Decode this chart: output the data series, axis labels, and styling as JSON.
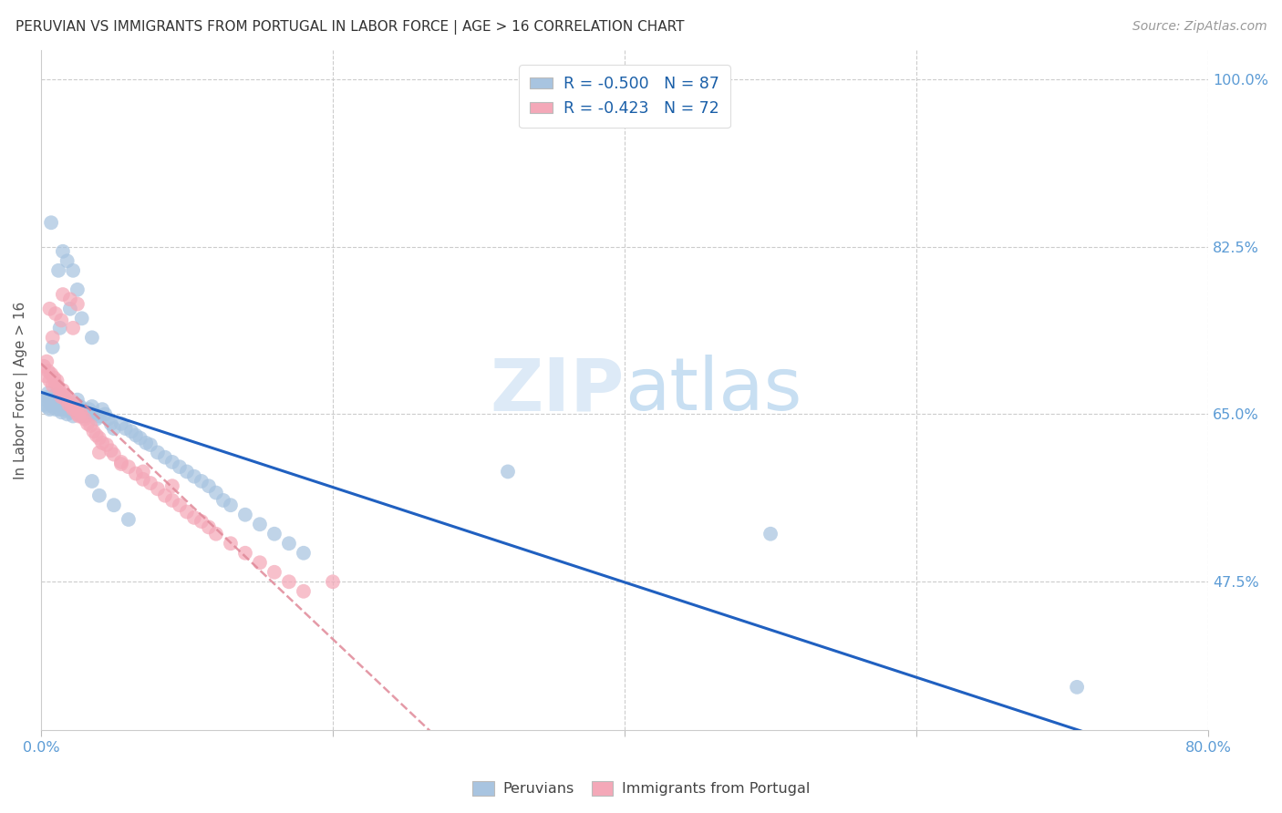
{
  "title": "PERUVIAN VS IMMIGRANTS FROM PORTUGAL IN LABOR FORCE | AGE > 16 CORRELATION CHART",
  "source": "Source: ZipAtlas.com",
  "ylabel": "In Labor Force | Age > 16",
  "legend_bottom": [
    "Peruvians",
    "Immigrants from Portugal"
  ],
  "r_peruvian": -0.5,
  "n_peruvian": 87,
  "r_portugal": -0.423,
  "n_portugal": 72,
  "xlim": [
    0.0,
    0.8
  ],
  "ylim": [
    0.32,
    1.03
  ],
  "ytick_vals": [
    0.475,
    0.65,
    0.825,
    1.0
  ],
  "ytick_labels": [
    "47.5%",
    "65.0%",
    "82.5%",
    "100.0%"
  ],
  "xtick_vals": [
    0.0,
    0.2,
    0.4,
    0.6,
    0.8
  ],
  "xtick_labels": [
    "0.0%",
    "",
    "",
    "",
    "80.0%"
  ],
  "color_peruvian": "#a8c4e0",
  "color_portugal": "#f4a8b8",
  "line_color_peruvian": "#2060c0",
  "line_color_portugal": "#e08898",
  "background": "#ffffff",
  "peruvian_x": [
    0.002,
    0.003,
    0.004,
    0.005,
    0.005,
    0.006,
    0.007,
    0.008,
    0.009,
    0.01,
    0.01,
    0.011,
    0.012,
    0.013,
    0.014,
    0.015,
    0.015,
    0.016,
    0.017,
    0.018,
    0.019,
    0.02,
    0.021,
    0.022,
    0.023,
    0.024,
    0.025,
    0.026,
    0.027,
    0.028,
    0.029,
    0.03,
    0.031,
    0.033,
    0.034,
    0.035,
    0.037,
    0.038,
    0.04,
    0.042,
    0.044,
    0.046,
    0.048,
    0.05,
    0.055,
    0.058,
    0.062,
    0.065,
    0.068,
    0.072,
    0.075,
    0.08,
    0.085,
    0.09,
    0.095,
    0.1,
    0.105,
    0.11,
    0.115,
    0.12,
    0.125,
    0.13,
    0.14,
    0.15,
    0.16,
    0.17,
    0.18,
    0.007,
    0.012,
    0.015,
    0.018,
    0.022,
    0.025,
    0.008,
    0.013,
    0.02,
    0.028,
    0.035,
    0.035,
    0.04,
    0.05,
    0.06,
    0.32,
    0.5,
    0.71
  ],
  "peruvian_y": [
    0.66,
    0.665,
    0.658,
    0.668,
    0.672,
    0.655,
    0.66,
    0.658,
    0.662,
    0.655,
    0.67,
    0.665,
    0.66,
    0.655,
    0.652,
    0.66,
    0.668,
    0.655,
    0.658,
    0.65,
    0.655,
    0.66,
    0.652,
    0.648,
    0.655,
    0.66,
    0.665,
    0.655,
    0.658,
    0.648,
    0.655,
    0.652,
    0.648,
    0.655,
    0.65,
    0.658,
    0.65,
    0.645,
    0.648,
    0.655,
    0.65,
    0.645,
    0.64,
    0.635,
    0.64,
    0.635,
    0.632,
    0.628,
    0.625,
    0.62,
    0.618,
    0.61,
    0.605,
    0.6,
    0.595,
    0.59,
    0.585,
    0.58,
    0.575,
    0.568,
    0.56,
    0.555,
    0.545,
    0.535,
    0.525,
    0.515,
    0.505,
    0.85,
    0.8,
    0.82,
    0.81,
    0.8,
    0.78,
    0.72,
    0.74,
    0.76,
    0.75,
    0.73,
    0.58,
    0.565,
    0.555,
    0.54,
    0.59,
    0.525,
    0.365
  ],
  "portugal_x": [
    0.002,
    0.003,
    0.004,
    0.005,
    0.006,
    0.007,
    0.008,
    0.009,
    0.01,
    0.011,
    0.012,
    0.013,
    0.014,
    0.015,
    0.016,
    0.017,
    0.018,
    0.019,
    0.02,
    0.021,
    0.022,
    0.023,
    0.024,
    0.025,
    0.026,
    0.027,
    0.028,
    0.03,
    0.032,
    0.034,
    0.036,
    0.038,
    0.04,
    0.042,
    0.045,
    0.048,
    0.05,
    0.055,
    0.06,
    0.065,
    0.07,
    0.075,
    0.08,
    0.085,
    0.09,
    0.095,
    0.1,
    0.105,
    0.11,
    0.115,
    0.12,
    0.13,
    0.14,
    0.15,
    0.16,
    0.17,
    0.18,
    0.006,
    0.01,
    0.015,
    0.02,
    0.025,
    0.008,
    0.014,
    0.022,
    0.04,
    0.055,
    0.07,
    0.09,
    0.2
  ],
  "portugal_y": [
    0.7,
    0.69,
    0.705,
    0.695,
    0.685,
    0.692,
    0.68,
    0.688,
    0.682,
    0.685,
    0.678,
    0.672,
    0.668,
    0.675,
    0.67,
    0.665,
    0.668,
    0.66,
    0.665,
    0.658,
    0.655,
    0.66,
    0.655,
    0.65,
    0.648,
    0.652,
    0.648,
    0.645,
    0.64,
    0.638,
    0.632,
    0.628,
    0.625,
    0.62,
    0.618,
    0.612,
    0.608,
    0.6,
    0.595,
    0.588,
    0.582,
    0.578,
    0.572,
    0.565,
    0.56,
    0.555,
    0.548,
    0.542,
    0.538,
    0.532,
    0.525,
    0.515,
    0.505,
    0.495,
    0.485,
    0.475,
    0.465,
    0.76,
    0.755,
    0.775,
    0.77,
    0.765,
    0.73,
    0.748,
    0.74,
    0.61,
    0.598,
    0.59,
    0.575,
    0.475
  ]
}
